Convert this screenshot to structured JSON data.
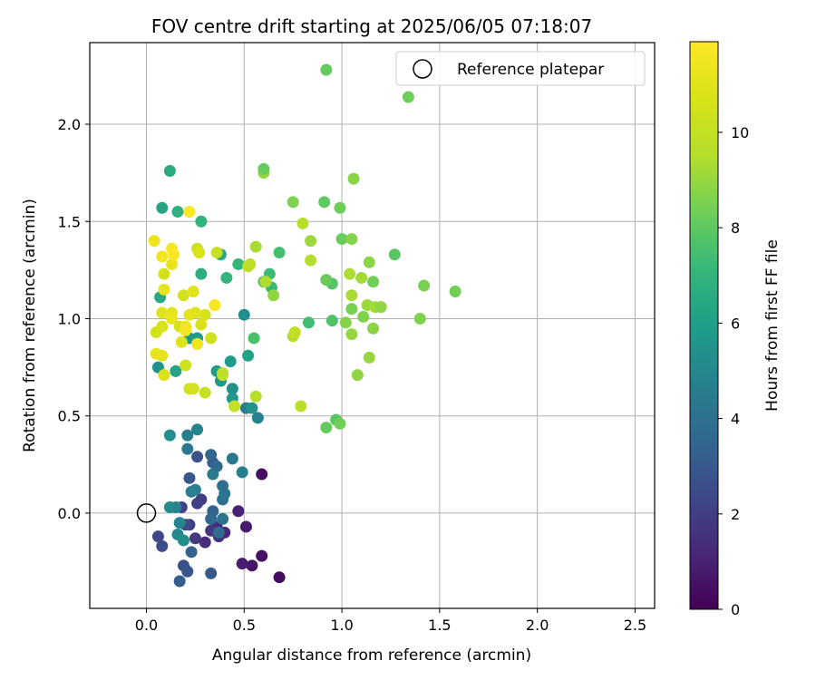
{
  "chart_data": {
    "type": "scatter",
    "title": "FOV centre drift starting at 2025/06/05 07:18:07",
    "xlabel": "Angular distance from reference (arcmin)",
    "ylabel": "Rotation from reference (arcmin)",
    "xlim": [
      -0.29,
      2.6
    ],
    "ylim": [
      -0.49,
      2.42
    ],
    "xticks": [
      0.0,
      0.5,
      1.0,
      1.5,
      2.0,
      2.5
    ],
    "xtick_labels": [
      "0.0",
      "0.5",
      "1.0",
      "1.5",
      "2.0",
      "2.5"
    ],
    "yticks": [
      0.0,
      0.5,
      1.0,
      1.5,
      2.0
    ],
    "ytick_labels": [
      "0.0",
      "0.5",
      "1.0",
      "1.5",
      "2.0"
    ],
    "grid": true,
    "legend": {
      "position": "top-right",
      "entries": [
        "Reference platepar"
      ]
    },
    "reference_point": {
      "name": "Reference platepar",
      "x": 0.0,
      "y": 0.0
    },
    "colorbar": {
      "label": "Hours from first FF file",
      "colormap": "viridis",
      "range": [
        0,
        11.9
      ],
      "ticks": [
        0,
        2,
        4,
        6,
        8,
        10
      ],
      "tick_labels": [
        "0",
        "2",
        "4",
        "6",
        "8",
        "10"
      ]
    },
    "points": [
      {
        "x": 0.68,
        "y": -0.33,
        "c": 0.3
      },
      {
        "x": 0.54,
        "y": -0.27,
        "c": 0.6
      },
      {
        "x": 0.49,
        "y": -0.26,
        "c": 0.9
      },
      {
        "x": 0.59,
        "y": -0.22,
        "c": 0.5
      },
      {
        "x": 0.59,
        "y": 0.2,
        "c": 0.4
      },
      {
        "x": 0.51,
        "y": -0.07,
        "c": 0.8
      },
      {
        "x": 0.47,
        "y": 0.01,
        "c": 1.0
      },
      {
        "x": 0.4,
        "y": -0.1,
        "c": 1.2
      },
      {
        "x": 0.37,
        "y": -0.12,
        "c": 1.5
      },
      {
        "x": 0.36,
        "y": -0.07,
        "c": 1.3
      },
      {
        "x": 0.33,
        "y": -0.09,
        "c": 1.7
      },
      {
        "x": 0.3,
        "y": -0.15,
        "c": 1.4
      },
      {
        "x": 0.28,
        "y": 0.07,
        "c": 1.9
      },
      {
        "x": 0.25,
        "y": -0.13,
        "c": 1.8
      },
      {
        "x": 0.22,
        "y": -0.06,
        "c": 2.0
      },
      {
        "x": 0.2,
        "y": -0.06,
        "c": 2.4
      },
      {
        "x": 0.18,
        "y": 0.03,
        "c": 2.2
      },
      {
        "x": 0.06,
        "y": -0.12,
        "c": 2.3
      },
      {
        "x": 0.08,
        "y": -0.17,
        "c": 2.5
      },
      {
        "x": 0.19,
        "y": -0.27,
        "c": 2.6
      },
      {
        "x": 0.21,
        "y": -0.3,
        "c": 2.8
      },
      {
        "x": 0.33,
        "y": -0.31,
        "c": 3.0
      },
      {
        "x": 0.17,
        "y": -0.35,
        "c": 3.2
      },
      {
        "x": 0.23,
        "y": -0.2,
        "c": 3.3
      },
      {
        "x": 0.22,
        "y": 0.18,
        "c": 2.9
      },
      {
        "x": 0.26,
        "y": 0.29,
        "c": 2.7
      },
      {
        "x": 0.26,
        "y": 0.05,
        "c": 2.1
      },
      {
        "x": 0.34,
        "y": 0.01,
        "c": 3.4
      },
      {
        "x": 0.33,
        "y": -0.03,
        "c": 3.6
      },
      {
        "x": 0.37,
        "y": -0.1,
        "c": 3.8
      },
      {
        "x": 0.34,
        "y": 0.26,
        "c": 3.1
      },
      {
        "x": 0.33,
        "y": 0.3,
        "c": 3.5
      },
      {
        "x": 0.36,
        "y": 0.24,
        "c": 3.7
      },
      {
        "x": 0.39,
        "y": 0.14,
        "c": 3.9
      },
      {
        "x": 0.39,
        "y": 0.07,
        "c": 4.0
      },
      {
        "x": 0.4,
        "y": 0.1,
        "c": 4.2
      },
      {
        "x": 0.39,
        "y": -0.03,
        "c": 4.1
      },
      {
        "x": 0.44,
        "y": 0.28,
        "c": 4.3
      },
      {
        "x": 0.49,
        "y": 0.21,
        "c": 4.6
      },
      {
        "x": 0.34,
        "y": 0.2,
        "c": 4.4
      },
      {
        "x": 0.23,
        "y": 0.11,
        "c": 4.5
      },
      {
        "x": 0.25,
        "y": 0.12,
        "c": 4.7
      },
      {
        "x": 0.15,
        "y": 0.03,
        "c": 4.8
      },
      {
        "x": 0.17,
        "y": -0.05,
        "c": 4.9
      },
      {
        "x": 0.16,
        "y": -0.11,
        "c": 5.0
      },
      {
        "x": 0.19,
        "y": -0.14,
        "c": 5.2
      },
      {
        "x": 0.12,
        "y": 0.03,
        "c": 5.1
      },
      {
        "x": 0.21,
        "y": 0.33,
        "c": 4.3
      },
      {
        "x": 0.21,
        "y": 0.4,
        "c": 4.6
      },
      {
        "x": 0.26,
        "y": 0.43,
        "c": 4.9
      },
      {
        "x": 0.12,
        "y": 0.4,
        "c": 5.3
      },
      {
        "x": 0.51,
        "y": 0.54,
        "c": 4.5
      },
      {
        "x": 0.57,
        "y": 0.49,
        "c": 4.8
      },
      {
        "x": 0.54,
        "y": 0.54,
        "c": 5.5
      },
      {
        "x": 0.44,
        "y": 0.59,
        "c": 5.6
      },
      {
        "x": 0.44,
        "y": 0.64,
        "c": 5.4
      },
      {
        "x": 0.38,
        "y": 0.68,
        "c": 5.7
      },
      {
        "x": 0.36,
        "y": 0.73,
        "c": 5.8
      },
      {
        "x": 0.43,
        "y": 0.78,
        "c": 5.9
      },
      {
        "x": 0.52,
        "y": 0.81,
        "c": 6.1
      },
      {
        "x": 0.5,
        "y": 1.02,
        "c": 5.3
      },
      {
        "x": 0.22,
        "y": 0.9,
        "c": 5.6
      },
      {
        "x": 0.26,
        "y": 0.9,
        "c": 5.9
      },
      {
        "x": 0.15,
        "y": 0.73,
        "c": 6.2
      },
      {
        "x": 0.06,
        "y": 0.75,
        "c": 5.5
      },
      {
        "x": 0.07,
        "y": 1.11,
        "c": 6.4
      },
      {
        "x": 0.08,
        "y": 1.57,
        "c": 6.3
      },
      {
        "x": 0.12,
        "y": 1.76,
        "c": 6.6
      },
      {
        "x": 0.16,
        "y": 1.55,
        "c": 6.8
      },
      {
        "x": 0.28,
        "y": 1.5,
        "c": 6.9
      },
      {
        "x": 0.28,
        "y": 1.23,
        "c": 6.7
      },
      {
        "x": 0.38,
        "y": 1.33,
        "c": 6.5
      },
      {
        "x": 0.41,
        "y": 1.21,
        "c": 7.0
      },
      {
        "x": 0.47,
        "y": 1.28,
        "c": 7.1
      },
      {
        "x": 0.63,
        "y": 1.23,
        "c": 7.3
      },
      {
        "x": 0.68,
        "y": 1.34,
        "c": 7.5
      },
      {
        "x": 0.6,
        "y": 1.19,
        "c": 7.8
      },
      {
        "x": 0.64,
        "y": 1.16,
        "c": 7.2
      },
      {
        "x": 0.55,
        "y": 0.9,
        "c": 7.6
      },
      {
        "x": 0.83,
        "y": 0.98,
        "c": 7.4
      },
      {
        "x": 0.95,
        "y": 0.99,
        "c": 7.7
      },
      {
        "x": 1.27,
        "y": 1.33,
        "c": 7.9
      },
      {
        "x": 0.91,
        "y": 1.6,
        "c": 8.0
      },
      {
        "x": 0.92,
        "y": 2.28,
        "c": 8.1
      },
      {
        "x": 1.34,
        "y": 2.14,
        "c": 8.3
      },
      {
        "x": 0.95,
        "y": 1.18,
        "c": 7.8
      },
      {
        "x": 0.92,
        "y": 1.2,
        "c": 8.2
      },
      {
        "x": 1.58,
        "y": 1.14,
        "c": 8.4
      },
      {
        "x": 1.42,
        "y": 1.17,
        "c": 8.5
      },
      {
        "x": 1.4,
        "y": 1.0,
        "c": 8.6
      },
      {
        "x": 1.0,
        "y": 1.41,
        "c": 8.2
      },
      {
        "x": 1.05,
        "y": 1.41,
        "c": 8.7
      },
      {
        "x": 0.99,
        "y": 1.57,
        "c": 8.3
      },
      {
        "x": 1.06,
        "y": 1.72,
        "c": 8.8
      },
      {
        "x": 0.97,
        "y": 0.48,
        "c": 7.9
      },
      {
        "x": 0.92,
        "y": 0.44,
        "c": 8.1
      },
      {
        "x": 0.99,
        "y": 0.46,
        "c": 8.4
      },
      {
        "x": 1.08,
        "y": 0.71,
        "c": 8.9
      },
      {
        "x": 1.14,
        "y": 0.8,
        "c": 9.0
      },
      {
        "x": 1.16,
        "y": 0.95,
        "c": 8.8
      },
      {
        "x": 1.11,
        "y": 1.01,
        "c": 8.6
      },
      {
        "x": 1.13,
        "y": 1.07,
        "c": 9.1
      },
      {
        "x": 1.17,
        "y": 1.06,
        "c": 9.2
      },
      {
        "x": 1.2,
        "y": 1.06,
        "c": 8.9
      },
      {
        "x": 1.05,
        "y": 1.05,
        "c": 8.5
      },
      {
        "x": 1.02,
        "y": 0.98,
        "c": 8.7
      },
      {
        "x": 1.05,
        "y": 0.92,
        "c": 9.0
      },
      {
        "x": 1.05,
        "y": 1.12,
        "c": 9.3
      },
      {
        "x": 1.16,
        "y": 1.19,
        "c": 8.4
      },
      {
        "x": 1.14,
        "y": 1.29,
        "c": 8.8
      },
      {
        "x": 1.1,
        "y": 1.21,
        "c": 9.2
      },
      {
        "x": 1.04,
        "y": 1.23,
        "c": 9.4
      },
      {
        "x": 0.84,
        "y": 1.4,
        "c": 9.1
      },
      {
        "x": 0.84,
        "y": 1.3,
        "c": 9.5
      },
      {
        "x": 0.8,
        "y": 1.49,
        "c": 9.6
      },
      {
        "x": 0.75,
        "y": 1.6,
        "c": 8.6
      },
      {
        "x": 0.6,
        "y": 1.75,
        "c": 9.0
      },
      {
        "x": 0.6,
        "y": 1.77,
        "c": 8.2
      },
      {
        "x": 0.56,
        "y": 1.37,
        "c": 9.3
      },
      {
        "x": 0.53,
        "y": 1.28,
        "c": 9.7
      },
      {
        "x": 0.52,
        "y": 1.27,
        "c": 9.8
      },
      {
        "x": 0.65,
        "y": 1.12,
        "c": 8.9
      },
      {
        "x": 0.61,
        "y": 1.19,
        "c": 9.4
      },
      {
        "x": 0.75,
        "y": 0.91,
        "c": 9.5
      },
      {
        "x": 0.76,
        "y": 0.93,
        "c": 9.9
      },
      {
        "x": 0.79,
        "y": 0.55,
        "c": 9.7
      },
      {
        "x": 0.56,
        "y": 0.6,
        "c": 9.6
      },
      {
        "x": 0.45,
        "y": 0.55,
        "c": 10.0
      },
      {
        "x": 0.39,
        "y": 0.71,
        "c": 10.2
      },
      {
        "x": 0.39,
        "y": 0.72,
        "c": 9.8
      },
      {
        "x": 0.3,
        "y": 0.62,
        "c": 10.1
      },
      {
        "x": 0.22,
        "y": 0.64,
        "c": 10.4
      },
      {
        "x": 0.24,
        "y": 0.64,
        "c": 10.6
      },
      {
        "x": 0.2,
        "y": 0.76,
        "c": 10.3
      },
      {
        "x": 0.09,
        "y": 0.71,
        "c": 10.8
      },
      {
        "x": 0.08,
        "y": 0.81,
        "c": 11.0
      },
      {
        "x": 0.05,
        "y": 0.82,
        "c": 11.2
      },
      {
        "x": 0.05,
        "y": 0.93,
        "c": 10.5
      },
      {
        "x": 0.08,
        "y": 0.96,
        "c": 10.7
      },
      {
        "x": 0.08,
        "y": 1.03,
        "c": 10.9
      },
      {
        "x": 0.13,
        "y": 1.03,
        "c": 11.1
      },
      {
        "x": 0.13,
        "y": 1.0,
        "c": 11.3
      },
      {
        "x": 0.17,
        "y": 0.96,
        "c": 10.6
      },
      {
        "x": 0.2,
        "y": 0.96,
        "c": 11.4
      },
      {
        "x": 0.2,
        "y": 0.94,
        "c": 11.6
      },
      {
        "x": 0.18,
        "y": 0.88,
        "c": 10.9
      },
      {
        "x": 0.26,
        "y": 0.87,
        "c": 11.5
      },
      {
        "x": 0.28,
        "y": 0.97,
        "c": 10.8
      },
      {
        "x": 0.33,
        "y": 0.9,
        "c": 10.4
      },
      {
        "x": 0.3,
        "y": 1.02,
        "c": 10.7
      },
      {
        "x": 0.25,
        "y": 1.03,
        "c": 10.9
      },
      {
        "x": 0.22,
        "y": 1.02,
        "c": 11.1
      },
      {
        "x": 0.35,
        "y": 1.07,
        "c": 11.7
      },
      {
        "x": 0.19,
        "y": 1.12,
        "c": 10.5
      },
      {
        "x": 0.24,
        "y": 1.14,
        "c": 11.0
      },
      {
        "x": 0.09,
        "y": 1.15,
        "c": 11.2
      },
      {
        "x": 0.09,
        "y": 1.23,
        "c": 10.6
      },
      {
        "x": 0.13,
        "y": 1.28,
        "c": 11.3
      },
      {
        "x": 0.08,
        "y": 1.32,
        "c": 11.5
      },
      {
        "x": 0.13,
        "y": 1.36,
        "c": 11.6
      },
      {
        "x": 0.14,
        "y": 1.33,
        "c": 11.8
      },
      {
        "x": 0.04,
        "y": 1.4,
        "c": 11.4
      },
      {
        "x": 0.26,
        "y": 1.36,
        "c": 10.3
      },
      {
        "x": 0.27,
        "y": 1.34,
        "c": 10.8
      },
      {
        "x": 0.36,
        "y": 1.34,
        "c": 10.1
      },
      {
        "x": 0.22,
        "y": 1.55,
        "c": 11.9
      }
    ]
  }
}
